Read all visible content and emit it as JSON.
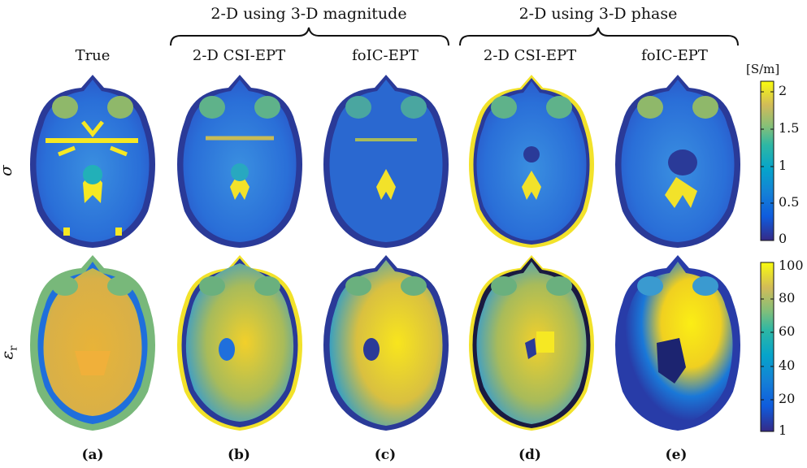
{
  "groups": [
    {
      "label": "2-D using 3-D magnitude"
    },
    {
      "label": "2-D using 3-D phase"
    }
  ],
  "columns": [
    {
      "title": "True",
      "panel": "(a)"
    },
    {
      "title": "2-D CSI-EPT",
      "panel": "(b)"
    },
    {
      "title": "foIC-EPT",
      "panel": "(c)"
    },
    {
      "title": "2-D CSI-EPT",
      "panel": "(d)"
    },
    {
      "title": "foIC-EPT",
      "panel": "(e)"
    }
  ],
  "rows": [
    {
      "label": "σ"
    },
    {
      "label": "ε"
    }
  ],
  "row2_subscript": "r",
  "colorbar_sigma": {
    "unit": "[S/m]",
    "ticks": [
      "2",
      "1.5",
      "1",
      "0.5",
      "0"
    ]
  },
  "colorbar_eps": {
    "ticks": [
      "100",
      "80",
      "60",
      "40",
      "20",
      "1"
    ]
  },
  "colors": {
    "min": "#2a2a8f",
    "low": "#1f6fdc",
    "mid": "#1fb0b0",
    "high": "#a8c040",
    "max": "#fbf01f"
  }
}
